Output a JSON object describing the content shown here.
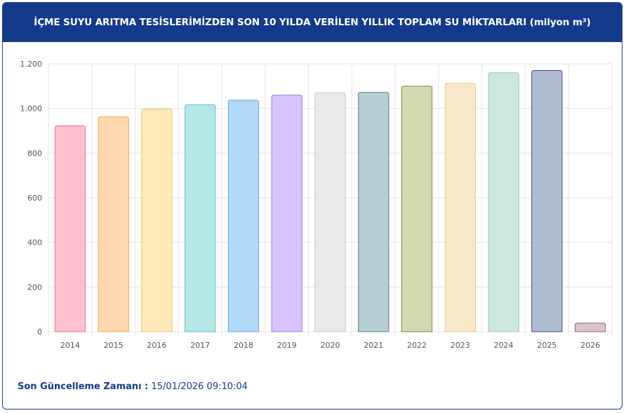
{
  "header": {
    "title": "İÇME SUYU ARITMA TESİSLERİMİZDEN SON 10 YILDA VERİLEN YILLIK TOPLAM SU MİKTARLARI (milyon m³)"
  },
  "footer": {
    "label": "Son Güncelleme Zamanı :",
    "value": "15/01/2026 09:10:04"
  },
  "colors": {
    "header_bg": "#143a8c",
    "grid": "#e6e6e6",
    "axis_text": "#555555"
  },
  "chart_data": {
    "type": "bar",
    "title": "İÇME SUYU ARITMA TESİSLERİMİZDEN SON 10 YILDA VERİLEN YILLIK TOPLAM SU MİKTARLARI (milyon m³)",
    "categories": [
      "2014",
      "2015",
      "2016",
      "2017",
      "2018",
      "2019",
      "2020",
      "2021",
      "2022",
      "2023",
      "2024",
      "2025",
      "2026"
    ],
    "values": [
      922,
      962,
      997,
      1017,
      1037,
      1060,
      1070,
      1072,
      1100,
      1113,
      1160,
      1170,
      38
    ],
    "ylim": [
      0,
      1200
    ],
    "yticks": [
      0,
      200,
      400,
      600,
      800,
      1000,
      1200
    ],
    "ytick_labels": [
      "0",
      "200",
      "400",
      "600",
      "800",
      "1.000",
      "1.200"
    ],
    "grid": true,
    "legend": "none",
    "xlabel": "",
    "ylabel": "",
    "bar_colors": [
      {
        "fill": "#ffc0cf",
        "stroke": "#e8708f"
      },
      {
        "fill": "#ffd8b0",
        "stroke": "#e8a55a"
      },
      {
        "fill": "#ffe9b8",
        "stroke": "#e6c56c"
      },
      {
        "fill": "#b5e6e6",
        "stroke": "#5fc2c2"
      },
      {
        "fill": "#b2d9f7",
        "stroke": "#63a8e0"
      },
      {
        "fill": "#d7c5fb",
        "stroke": "#a07ee6"
      },
      {
        "fill": "#e9e9eb",
        "stroke": "#c7c7cb"
      },
      {
        "fill": "#b6cdd1",
        "stroke": "#5d7f85"
      },
      {
        "fill": "#d5d9b1",
        "stroke": "#7f8641"
      },
      {
        "fill": "#f6e8c9",
        "stroke": "#e2c78f"
      },
      {
        "fill": "#cce7e0",
        "stroke": "#8fc9ba"
      },
      {
        "fill": "#b0bcd2",
        "stroke": "#3b4e78"
      },
      {
        "fill": "#dcc3cb",
        "stroke": "#8a6a74"
      }
    ]
  }
}
